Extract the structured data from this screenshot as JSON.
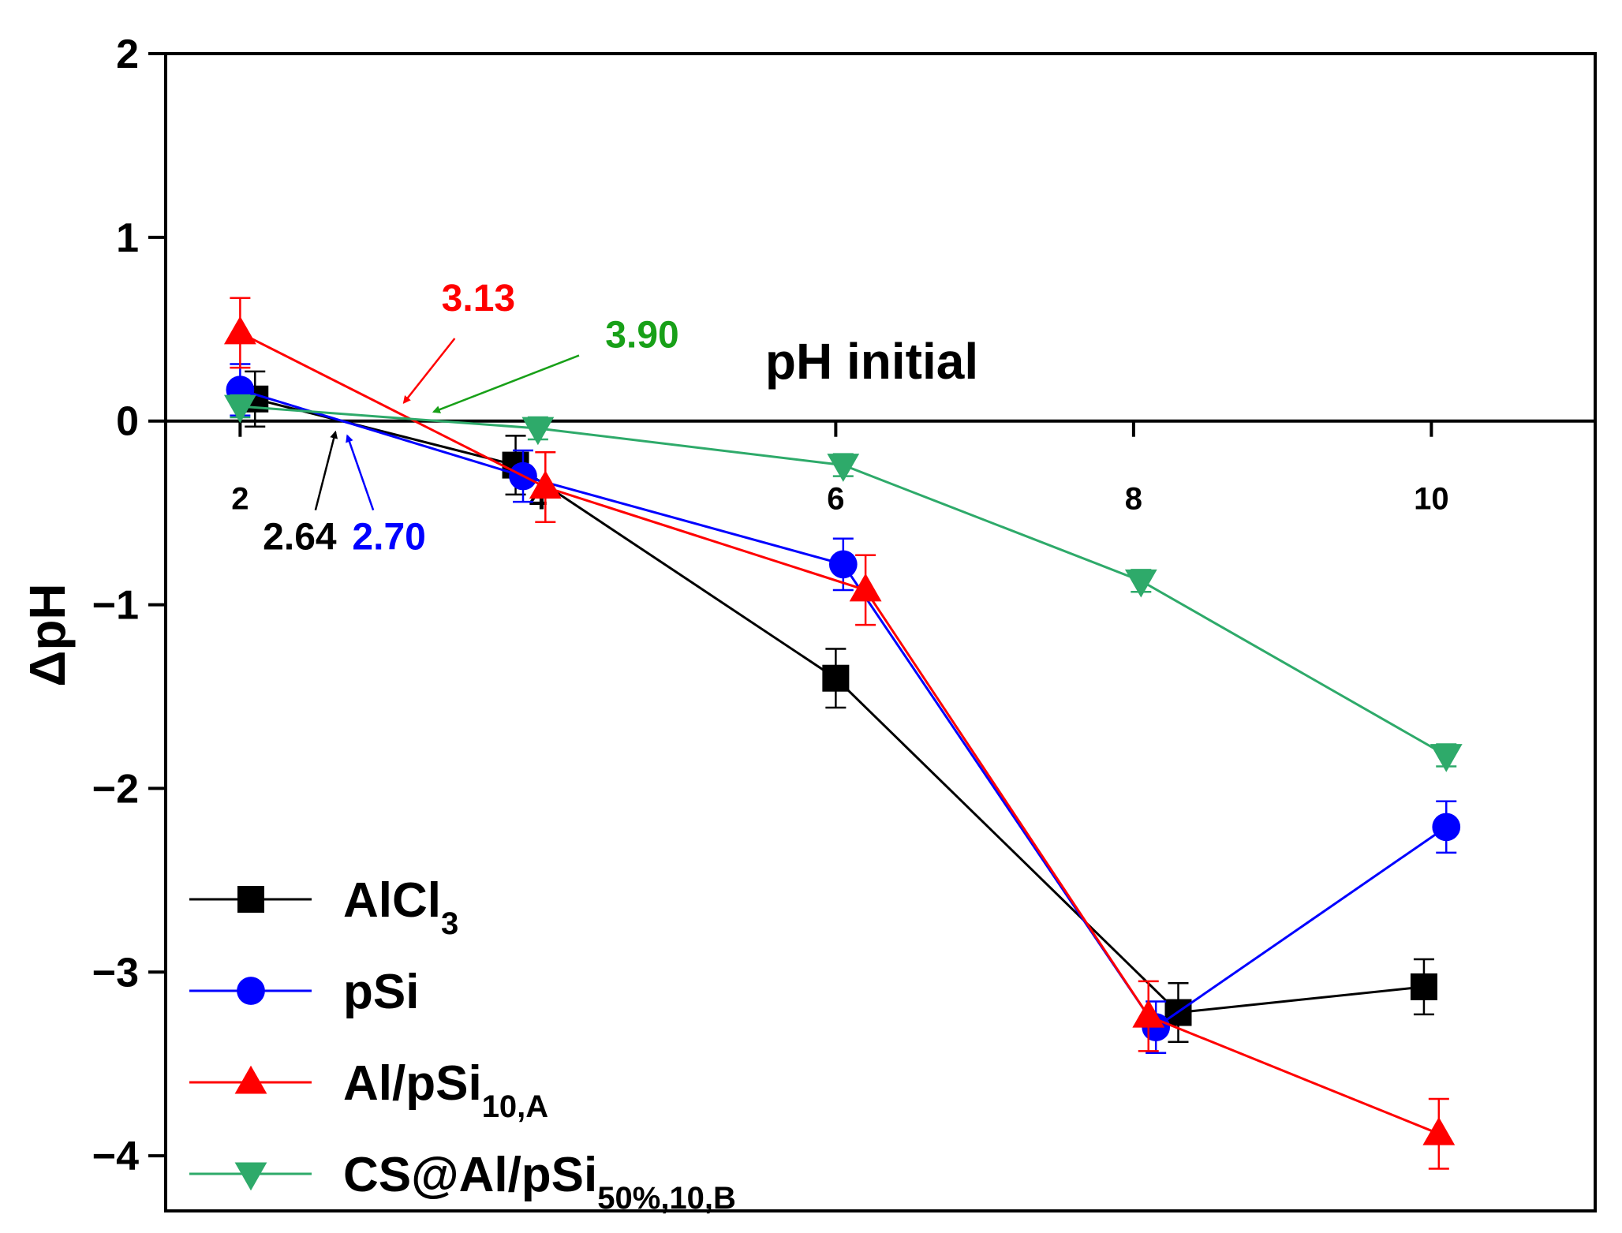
{
  "chart_data": {
    "type": "line",
    "title": "",
    "xlabel": "pH initial",
    "ylabel": "ΔpH",
    "xlim": [
      1.5,
      11.1
    ],
    "ylim": [
      -4.3,
      2
    ],
    "x_ticks": [
      2,
      4,
      6,
      8,
      10
    ],
    "x_tick_labels": [
      "2",
      "4",
      "6",
      "8",
      "10"
    ],
    "y_ticks": [
      2,
      1,
      0,
      -1,
      -2,
      -3,
      -4
    ],
    "y_tick_labels": [
      "2",
      "1",
      "0",
      "−1",
      "−2",
      "−3",
      "−4"
    ],
    "grid": false,
    "legend_position": "bottom-left",
    "series": [
      {
        "name": "AlCl",
        "name_sub": "3",
        "color": "#000000",
        "marker": "square",
        "points": [
          {
            "x": 2.1,
            "y": 0.12,
            "err": 0.15
          },
          {
            "x": 3.85,
            "y": -0.24,
            "err": 0.16
          },
          {
            "x": 6.0,
            "y": -1.4,
            "err": 0.16
          },
          {
            "x": 8.3,
            "y": -3.22,
            "err": 0.16
          },
          {
            "x": 9.95,
            "y": -3.08,
            "err": 0.15
          }
        ]
      },
      {
        "name": "pSi",
        "name_sub": "",
        "color": "#0000ff",
        "marker": "circle",
        "points": [
          {
            "x": 2.0,
            "y": 0.17,
            "err": 0.14
          },
          {
            "x": 3.9,
            "y": -0.3,
            "err": 0.14
          },
          {
            "x": 6.05,
            "y": -0.78,
            "err": 0.14
          },
          {
            "x": 8.15,
            "y": -3.3,
            "err": 0.14
          },
          {
            "x": 10.1,
            "y": -2.21,
            "err": 0.14
          }
        ]
      },
      {
        "name": "Al/pSi",
        "name_sub": "10,A",
        "color": "#ff0000",
        "marker": "triangle-up",
        "points": [
          {
            "x": 2.0,
            "y": 0.48,
            "err": 0.19
          },
          {
            "x": 4.05,
            "y": -0.36,
            "err": 0.19
          },
          {
            "x": 6.2,
            "y": -0.92,
            "err": 0.19
          },
          {
            "x": 8.1,
            "y": -3.24,
            "err": 0.19
          },
          {
            "x": 10.05,
            "y": -3.88,
            "err": 0.19
          }
        ]
      },
      {
        "name": "CS@Al/pSi",
        "name_sub": "50%,10,B",
        "color": "#2eaa6a",
        "marker": "triangle-down",
        "points": [
          {
            "x": 2.0,
            "y": 0.08,
            "err": 0.06
          },
          {
            "x": 4.0,
            "y": -0.04,
            "err": 0.06
          },
          {
            "x": 6.05,
            "y": -0.24,
            "err": 0.06
          },
          {
            "x": 8.05,
            "y": -0.87,
            "err": 0.06
          },
          {
            "x": 10.1,
            "y": -1.82,
            "err": 0.06
          }
        ]
      }
    ],
    "annotations": [
      {
        "text": "3.13",
        "color": "#ff0000",
        "x": 3.13,
        "y": 0,
        "label_x": 3.6,
        "label_y": 0.6,
        "tip_x": 3.1,
        "tip_y": 0.1
      },
      {
        "text": "3.90",
        "color": "#18a018",
        "x": 3.9,
        "y": 0,
        "label_x": 4.7,
        "label_y": 0.4,
        "tip_x": 3.3,
        "tip_y": 0.05
      },
      {
        "text": "2.64",
        "color": "#000000",
        "x": 2.64,
        "y": 0,
        "label_x": 2.4,
        "label_y": -0.7,
        "tip_x": 2.64,
        "tip_y": -0.06
      },
      {
        "text": "2.70",
        "color": "#0000ff",
        "x": 2.7,
        "y": 0,
        "label_x": 3.0,
        "label_y": -0.7,
        "tip_x": 2.72,
        "tip_y": -0.08
      }
    ]
  }
}
